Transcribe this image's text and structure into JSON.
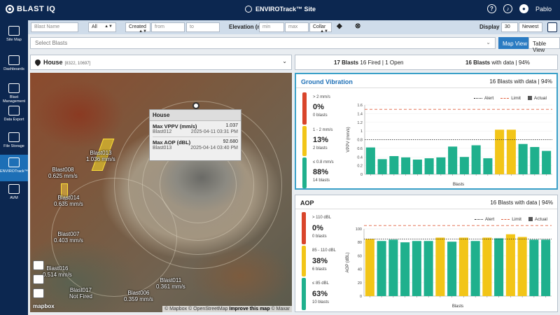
{
  "header": {
    "logo": "BLAST IQ",
    "site_title": "ENVIROTrack™ Site",
    "help_icon": "help-circle-icon",
    "notify_icon": "bell-icon",
    "user_name": "Pablo"
  },
  "sidebar": {
    "items": [
      {
        "label": "Site Map",
        "icon": "site-map-icon"
      },
      {
        "label": "Dashboards",
        "icon": "dashboards-icon"
      },
      {
        "label": "Blast Management",
        "icon": "blast-management-icon"
      },
      {
        "label": "Data Export",
        "icon": "data-export-icon"
      },
      {
        "label": "File Storage",
        "icon": "file-storage-icon"
      },
      {
        "label": "ENVIROTrack™",
        "icon": "envirotrack-icon"
      },
      {
        "label": "AVM",
        "icon": "avm-icon"
      }
    ]
  },
  "filters": {
    "blast_name_placeholder": "Blast Name",
    "type_value": "All",
    "date_field": "Created",
    "from_placeholder": "from",
    "to_placeholder": "to",
    "elevation_label": "Elevation (m)",
    "min_placeholder": "min",
    "max_placeholder": "max",
    "collar_value": "Collar",
    "display_label": "Display",
    "display_count": "30",
    "sort_value": "Newest"
  },
  "select_blasts_placeholder": "Select Blasts",
  "view_buttons": {
    "map": "Map View",
    "table": "Table View"
  },
  "location": {
    "name": "House",
    "coords": "[8322, 10697]"
  },
  "summary": {
    "blasts_bold": "17 Blasts",
    "blasts_rest": " 16 Fired | 1 Open",
    "with_data_bold": "16 Blasts",
    "with_data_rest": " with data | 94%"
  },
  "map": {
    "tooltip": {
      "title": "House",
      "vppv_label": "Max VPPV (mm/s)",
      "vppv_value": "1.037",
      "vppv_blast": "Blast012",
      "vppv_time": "2025-04-11 03:31 PM",
      "aop_label": "Max AOP (dBL)",
      "aop_value": "92.680",
      "aop_blast": "Blast013",
      "aop_time": "2025-04-14 03:40 PM"
    },
    "labels": [
      {
        "name": "Blast013",
        "value": "1.036 mm/s"
      },
      {
        "name": "Blast008",
        "value": "0.625 mm/s"
      },
      {
        "name": "Blast014",
        "value": "0.635 mm/s"
      },
      {
        "name": "Blast007",
        "value": "0.403 mm/s"
      },
      {
        "name": "Blast016",
        "value": "0.514 mm/s"
      },
      {
        "name": "Blast017",
        "value": "Not Fired"
      },
      {
        "name": "Blast006",
        "value": "0.359 mm/s"
      },
      {
        "name": "Blast011",
        "value": "0.361 mm/s"
      }
    ],
    "brand": "mapbox",
    "attribution": "© Mapbox © OpenStreetMap",
    "improve": "Improve this map",
    "attribution_tail": "© Maxar"
  },
  "ground_vibration": {
    "title": "Ground Vibration",
    "with_data": "16 Blasts with data | 94%",
    "levels": [
      {
        "range": "> 2 mm/s",
        "pct": "0%",
        "count": "0 blasts",
        "color": "#d9452b"
      },
      {
        "range": "1 - 2 mm/s",
        "pct": "13%",
        "count": "2 blasts",
        "color": "#f2c518"
      },
      {
        "range": "≤ 0.8 mm/s",
        "pct": "88%",
        "count": "14 blasts",
        "color": "#1fb08d"
      }
    ],
    "legend": {
      "alert": "Alert",
      "limit": "Limit",
      "actual": "Actual"
    }
  },
  "aop": {
    "title": "AOP",
    "with_data": "16 Blasts with data | 94%",
    "levels": [
      {
        "range": "> 110 dBL",
        "pct": "0%",
        "count": "0 blasts",
        "color": "#d9452b"
      },
      {
        "range": "85 - 110 dBL",
        "pct": "38%",
        "count": "6 blasts",
        "color": "#f2c518"
      },
      {
        "range": "≤ 85 dBL",
        "pct": "63%",
        "count": "10 blasts",
        "color": "#1fb08d"
      }
    ],
    "legend": {
      "alert": "Alert",
      "limit": "Limit",
      "actual": "Actual"
    }
  },
  "chart_data": [
    {
      "type": "bar",
      "name": "ground-vibration",
      "ylabel": "VPPV (mm/s)",
      "xlabel": "Blasts",
      "ylim": [
        0,
        1.6
      ],
      "yticks": [
        0,
        0.2,
        0.4,
        0.6,
        0.8,
        1.0,
        1.2,
        1.4,
        1.6
      ],
      "alert": 0.8,
      "limit": 1.5,
      "values": [
        0.62,
        0.35,
        0.42,
        0.39,
        0.34,
        0.37,
        0.39,
        0.64,
        0.4,
        0.67,
        0.37,
        1.03,
        1.03,
        0.7,
        0.63,
        0.54
      ],
      "colors": [
        "#1fb08d",
        "#1fb08d",
        "#1fb08d",
        "#1fb08d",
        "#1fb08d",
        "#1fb08d",
        "#1fb08d",
        "#1fb08d",
        "#1fb08d",
        "#1fb08d",
        "#1fb08d",
        "#f2c518",
        "#f2c518",
        "#1fb08d",
        "#1fb08d",
        "#1fb08d"
      ]
    },
    {
      "type": "bar",
      "name": "aop",
      "ylabel": "AOP (dBL)",
      "xlabel": "Blasts",
      "ylim": [
        0,
        100
      ],
      "yticks": [
        0,
        20,
        40,
        60,
        80,
        100
      ],
      "alert": 85,
      "limit": 105,
      "values": [
        85,
        82,
        84,
        80,
        82,
        82,
        87,
        81,
        87,
        82,
        87,
        86,
        92,
        88,
        84,
        84
      ],
      "colors": [
        "#f2c518",
        "#1fb08d",
        "#1fb08d",
        "#1fb08d",
        "#1fb08d",
        "#1fb08d",
        "#f2c518",
        "#1fb08d",
        "#f2c518",
        "#1fb08d",
        "#f2c518",
        "#1fb08d",
        "#f2c518",
        "#f2c518",
        "#1fb08d",
        "#1fb08d"
      ]
    }
  ]
}
